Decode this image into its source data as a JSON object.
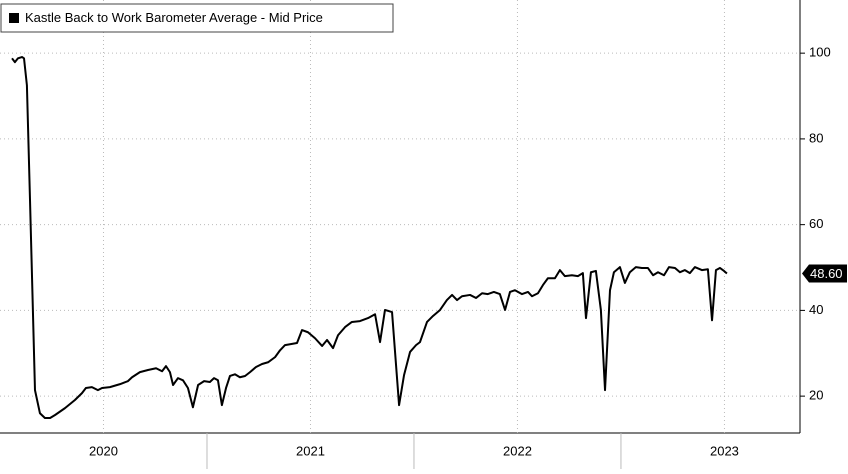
{
  "chart_data": {
    "type": "line",
    "title": "Kastle Back to Work Barometer Average - Mid Price",
    "x": [
      2020.058,
      2020.072,
      2020.087,
      2020.106,
      2020.116,
      2020.13,
      2020.145,
      2020.169,
      2020.193,
      2020.217,
      2020.242,
      2020.266,
      2020.314,
      2020.362,
      2020.396,
      2020.415,
      2020.444,
      2020.473,
      2020.493,
      2020.531,
      2020.58,
      2020.618,
      2020.638,
      2020.676,
      2020.715,
      2020.754,
      2020.783,
      2020.802,
      2020.821,
      2020.836,
      2020.86,
      2020.884,
      2020.908,
      2020.932,
      2020.957,
      2020.986,
      2021.014,
      2021.034,
      2021.053,
      2021.072,
      2021.092,
      2021.111,
      2021.135,
      2021.159,
      2021.184,
      2021.208,
      2021.237,
      2021.266,
      2021.295,
      2021.329,
      2021.353,
      2021.377,
      2021.401,
      2021.435,
      2021.459,
      2021.488,
      2021.522,
      2021.556,
      2021.58,
      2021.609,
      2021.633,
      2021.667,
      2021.7,
      2021.739,
      2021.778,
      2021.812,
      2021.836,
      2021.86,
      2021.894,
      2021.928,
      2021.952,
      2021.981,
      2022.01,
      2022.029,
      2022.063,
      2022.092,
      2022.126,
      2022.159,
      2022.184,
      2022.208,
      2022.232,
      2022.271,
      2022.3,
      2022.329,
      2022.357,
      2022.386,
      2022.415,
      2022.44,
      2022.464,
      2022.488,
      2022.522,
      2022.551,
      2022.57,
      2022.599,
      2022.623,
      2022.647,
      2022.681,
      2022.705,
      2022.729,
      2022.763,
      2022.792,
      2022.816,
      2022.831,
      2022.855,
      2022.879,
      2022.903,
      2022.923,
      2022.947,
      2022.966,
      2022.995,
      2023.019,
      2023.043,
      2023.072,
      2023.101,
      2023.13,
      2023.155,
      2023.179,
      2023.208,
      2023.232,
      2023.261,
      2023.285,
      2023.309,
      2023.333,
      2023.357,
      2023.391,
      2023.42,
      2023.44,
      2023.459,
      2023.478,
      2023.498,
      2023.512
    ],
    "series": [
      {
        "name": "Kastle Back to Work Barometer Average - Mid Price",
        "color": "#000000",
        "values": [
          98.8,
          97.9,
          98.8,
          99.1,
          98.8,
          92.5,
          65.7,
          21.4,
          16.0,
          14.9,
          14.9,
          15.6,
          17.2,
          19.1,
          20.7,
          21.9,
          22.1,
          21.4,
          21.9,
          22.1,
          22.8,
          23.5,
          24.4,
          25.6,
          26.1,
          26.5,
          25.8,
          27.0,
          25.6,
          22.6,
          24.2,
          23.7,
          21.9,
          17.4,
          22.6,
          23.5,
          23.3,
          24.2,
          23.7,
          17.9,
          21.9,
          24.7,
          25.1,
          24.4,
          24.7,
          25.6,
          26.8,
          27.5,
          27.9,
          29.1,
          30.7,
          31.9,
          32.1,
          32.4,
          35.4,
          34.9,
          33.5,
          31.7,
          33.1,
          31.2,
          34.2,
          36.1,
          37.3,
          37.5,
          38.2,
          39.1,
          32.6,
          40.1,
          39.6,
          17.9,
          24.9,
          30.3,
          31.9,
          32.6,
          37.3,
          38.7,
          40.1,
          42.4,
          43.6,
          42.4,
          43.3,
          43.6,
          42.9,
          44.0,
          43.8,
          44.3,
          43.8,
          40.1,
          44.3,
          44.7,
          43.8,
          44.3,
          43.3,
          44.0,
          45.9,
          47.5,
          47.5,
          49.4,
          48.0,
          48.2,
          48.0,
          48.7,
          38.2,
          48.9,
          49.2,
          40.1,
          21.4,
          44.7,
          48.9,
          50.1,
          46.4,
          48.9,
          50.1,
          49.9,
          49.9,
          48.2,
          48.9,
          48.2,
          50.1,
          49.9,
          48.9,
          49.4,
          48.7,
          50.1,
          49.4,
          49.6,
          37.7,
          49.4,
          49.9,
          49.2,
          48.6
        ]
      }
    ],
    "xlim": [
      2020.0,
      2023.865
    ],
    "xticks": [
      {
        "value": 2020.5,
        "label": "2020"
      },
      {
        "value": 2021.5,
        "label": "2021"
      },
      {
        "value": 2022.5,
        "label": "2022"
      },
      {
        "value": 2023.5,
        "label": "2023"
      }
    ],
    "ylim": [
      11.4,
      112.4
    ],
    "yticks": [
      20,
      40,
      60,
      80,
      100
    ],
    "grid": true,
    "last_value": {
      "value": 48.6,
      "label": "48.60"
    }
  }
}
